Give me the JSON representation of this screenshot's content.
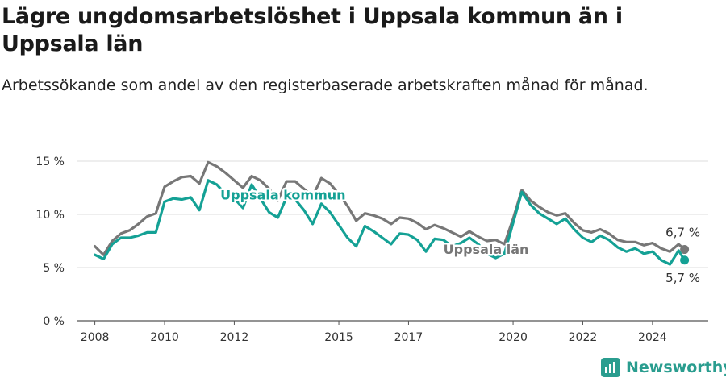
{
  "chart_data": {
    "type": "line",
    "title": "Lägre ungdomsarbetslöshet i Uppsala kommun än i Uppsala län",
    "subtitle": "Arbetssökande som andel av den registerbaserade arbetskraften månad för månad.",
    "x_ticks": [
      "2008",
      "2010",
      "2012",
      "2015",
      "2017",
      "2020",
      "2022",
      "2024"
    ],
    "y_ticks": [
      "0 %",
      "5 %",
      "10 %",
      "15 %"
    ],
    "ylim": [
      0,
      15
    ],
    "grid": "horizontal",
    "series": [
      {
        "name": "Uppsala län",
        "color": "#777777",
        "end_label": "6,7 %",
        "points": [
          [
            2008.0,
            7.0
          ],
          [
            2008.25,
            6.2
          ],
          [
            2008.5,
            7.5
          ],
          [
            2008.75,
            8.2
          ],
          [
            2009.0,
            8.5
          ],
          [
            2009.25,
            9.1
          ],
          [
            2009.5,
            9.8
          ],
          [
            2009.75,
            10.1
          ],
          [
            2010.0,
            12.6
          ],
          [
            2010.25,
            13.1
          ],
          [
            2010.5,
            13.5
          ],
          [
            2010.75,
            13.6
          ],
          [
            2011.0,
            12.9
          ],
          [
            2011.25,
            14.9
          ],
          [
            2011.5,
            14.5
          ],
          [
            2011.75,
            13.9
          ],
          [
            2012.0,
            13.2
          ],
          [
            2012.25,
            12.5
          ],
          [
            2012.5,
            13.6
          ],
          [
            2012.75,
            13.2
          ],
          [
            2013.0,
            12.4
          ],
          [
            2013.25,
            11.3
          ],
          [
            2013.5,
            13.1
          ],
          [
            2013.75,
            13.1
          ],
          [
            2014.0,
            12.4
          ],
          [
            2014.25,
            11.7
          ],
          [
            2014.5,
            13.4
          ],
          [
            2014.75,
            12.9
          ],
          [
            2015.0,
            11.9
          ],
          [
            2015.25,
            10.8
          ],
          [
            2015.5,
            9.4
          ],
          [
            2015.75,
            10.1
          ],
          [
            2016.0,
            9.9
          ],
          [
            2016.25,
            9.6
          ],
          [
            2016.5,
            9.1
          ],
          [
            2016.75,
            9.7
          ],
          [
            2017.0,
            9.6
          ],
          [
            2017.25,
            9.2
          ],
          [
            2017.5,
            8.6
          ],
          [
            2017.75,
            9.0
          ],
          [
            2018.0,
            8.7
          ],
          [
            2018.25,
            8.3
          ],
          [
            2018.5,
            7.9
          ],
          [
            2018.75,
            8.4
          ],
          [
            2019.0,
            7.9
          ],
          [
            2019.25,
            7.5
          ],
          [
            2019.5,
            7.6
          ],
          [
            2019.75,
            7.2
          ],
          [
            2020.0,
            9.6
          ],
          [
            2020.25,
            12.3
          ],
          [
            2020.5,
            11.3
          ],
          [
            2020.75,
            10.7
          ],
          [
            2021.0,
            10.2
          ],
          [
            2021.25,
            9.9
          ],
          [
            2021.5,
            10.1
          ],
          [
            2021.75,
            9.2
          ],
          [
            2022.0,
            8.5
          ],
          [
            2022.25,
            8.3
          ],
          [
            2022.5,
            8.6
          ],
          [
            2022.75,
            8.2
          ],
          [
            2023.0,
            7.6
          ],
          [
            2023.25,
            7.4
          ],
          [
            2023.5,
            7.4
          ],
          [
            2023.75,
            7.1
          ],
          [
            2024.0,
            7.3
          ],
          [
            2024.25,
            6.8
          ],
          [
            2024.5,
            6.5
          ],
          [
            2024.75,
            7.2
          ],
          [
            2024.92,
            6.7
          ]
        ]
      },
      {
        "name": "Uppsala kommun",
        "color": "#14a195",
        "end_label": "5,7 %",
        "points": [
          [
            2008.0,
            6.2
          ],
          [
            2008.25,
            5.8
          ],
          [
            2008.5,
            7.2
          ],
          [
            2008.75,
            7.8
          ],
          [
            2009.0,
            7.8
          ],
          [
            2009.25,
            8.0
          ],
          [
            2009.5,
            8.3
          ],
          [
            2009.75,
            8.3
          ],
          [
            2010.0,
            11.2
          ],
          [
            2010.25,
            11.5
          ],
          [
            2010.5,
            11.4
          ],
          [
            2010.75,
            11.6
          ],
          [
            2011.0,
            10.4
          ],
          [
            2011.25,
            13.2
          ],
          [
            2011.5,
            12.8
          ],
          [
            2011.75,
            11.9
          ],
          [
            2012.0,
            11.5
          ],
          [
            2012.25,
            10.6
          ],
          [
            2012.5,
            12.8
          ],
          [
            2012.75,
            11.5
          ],
          [
            2013.0,
            10.2
          ],
          [
            2013.25,
            9.7
          ],
          [
            2013.5,
            11.6
          ],
          [
            2013.75,
            11.4
          ],
          [
            2014.0,
            10.4
          ],
          [
            2014.25,
            9.1
          ],
          [
            2014.5,
            11.0
          ],
          [
            2014.75,
            10.2
          ],
          [
            2015.0,
            9.0
          ],
          [
            2015.25,
            7.8
          ],
          [
            2015.5,
            7.0
          ],
          [
            2015.75,
            8.9
          ],
          [
            2016.0,
            8.4
          ],
          [
            2016.25,
            7.8
          ],
          [
            2016.5,
            7.2
          ],
          [
            2016.75,
            8.2
          ],
          [
            2017.0,
            8.1
          ],
          [
            2017.25,
            7.6
          ],
          [
            2017.5,
            6.5
          ],
          [
            2017.75,
            7.7
          ],
          [
            2018.0,
            7.6
          ],
          [
            2018.25,
            7.0
          ],
          [
            2018.5,
            7.3
          ],
          [
            2018.75,
            7.8
          ],
          [
            2019.0,
            7.2
          ],
          [
            2019.25,
            6.3
          ],
          [
            2019.5,
            5.9
          ],
          [
            2019.75,
            6.3
          ],
          [
            2020.0,
            9.2
          ],
          [
            2020.25,
            12.1
          ],
          [
            2020.5,
            10.9
          ],
          [
            2020.75,
            10.1
          ],
          [
            2021.0,
            9.6
          ],
          [
            2021.25,
            9.1
          ],
          [
            2021.5,
            9.6
          ],
          [
            2021.75,
            8.6
          ],
          [
            2022.0,
            7.8
          ],
          [
            2022.25,
            7.4
          ],
          [
            2022.5,
            8.0
          ],
          [
            2022.75,
            7.6
          ],
          [
            2023.0,
            6.9
          ],
          [
            2023.25,
            6.5
          ],
          [
            2023.5,
            6.8
          ],
          [
            2023.75,
            6.3
          ],
          [
            2024.0,
            6.5
          ],
          [
            2024.25,
            5.7
          ],
          [
            2024.5,
            5.3
          ],
          [
            2024.75,
            6.6
          ],
          [
            2024.92,
            5.7
          ]
        ]
      }
    ]
  },
  "brand": {
    "name": "Newsworthy",
    "icon": "newsworthy-logo-icon",
    "color": "#2a9d8f"
  }
}
